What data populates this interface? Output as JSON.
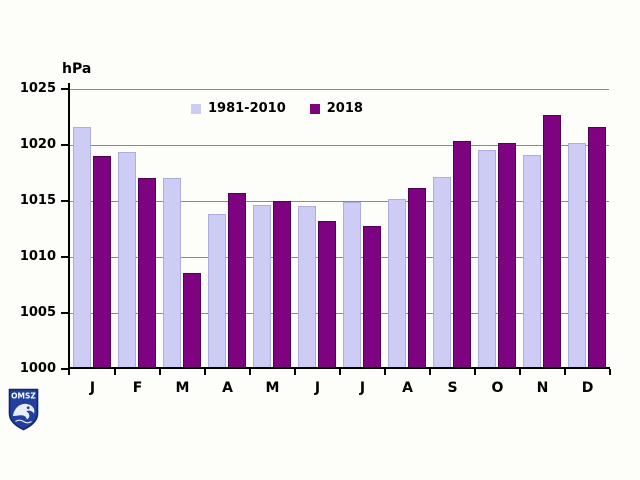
{
  "chart_data": {
    "type": "bar",
    "title": "",
    "y_axis_title": "hPa",
    "categories": [
      "J",
      "F",
      "M",
      "A",
      "M",
      "J",
      "J",
      "A",
      "S",
      "O",
      "N",
      "D"
    ],
    "series": [
      {
        "name": "1981-2010",
        "color": "#CDCCF4",
        "border_color": "#AEADDF",
        "values": [
          1021.4,
          1019.2,
          1016.9,
          1013.7,
          1014.5,
          1014.4,
          1014.7,
          1015.0,
          1017.0,
          1019.4,
          1018.9,
          1020.0
        ]
      },
      {
        "name": "2018",
        "color": "#7E0380",
        "border_color": "#4F0154",
        "values": [
          1018.8,
          1016.9,
          1008.4,
          1015.5,
          1014.8,
          1013.0,
          1012.6,
          1016.0,
          1020.2,
          1020.0,
          1022.5,
          1021.4
        ]
      }
    ],
    "ylim": [
      1000,
      1025
    ],
    "yticks": [
      1000,
      1005,
      1010,
      1015,
      1020,
      1025
    ],
    "grid": true,
    "gridline_color": "#8A8A8A",
    "axis_color": "#000000",
    "legend_position": "top-center"
  },
  "logo": {
    "text": "OMSZ",
    "shield_color": "#24409E",
    "shield_border_color": "#14266B",
    "emblem_color": "#E9EEFF"
  }
}
